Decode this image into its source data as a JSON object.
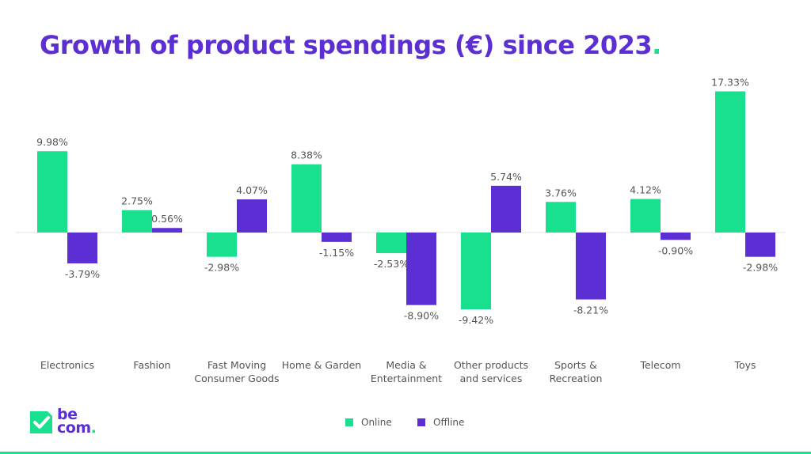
{
  "header": {
    "title": "Growth of product spendings (€) since 2023",
    "title_dot": "."
  },
  "colors": {
    "online": "#19e08f",
    "offline": "#5b2fd4",
    "title": "#5b2fd4",
    "accent": "#19e08f"
  },
  "chart_data": {
    "type": "bar",
    "title": "Growth of product spendings (€) since 2023",
    "categories": [
      [
        "Electronics"
      ],
      [
        "Fashion"
      ],
      [
        "Fast Moving",
        "Consumer Goods"
      ],
      [
        "Home & Garden"
      ],
      [
        "Media &",
        "Entertainment"
      ],
      [
        "Other products",
        "and services"
      ],
      [
        "Sports &",
        "Recreation"
      ],
      [
        "Telecom"
      ],
      [
        "Toys"
      ]
    ],
    "series": [
      {
        "name": "Online",
        "values": [
          9.98,
          2.75,
          -2.98,
          8.38,
          -2.53,
          -9.42,
          3.76,
          4.12,
          17.33
        ]
      },
      {
        "name": "Offline",
        "values": [
          -3.79,
          0.56,
          4.07,
          -1.15,
          -8.9,
          5.74,
          -8.21,
          -0.9,
          -2.98
        ]
      }
    ],
    "value_format": "percent_2dp",
    "xlabel": "",
    "ylabel": "",
    "grid": false,
    "legend_position": "bottom-center"
  },
  "legend": {
    "online_label": "Online",
    "offline_label": "Offline"
  },
  "logo": {
    "line1": "be",
    "line2": "com",
    "dot": "."
  }
}
